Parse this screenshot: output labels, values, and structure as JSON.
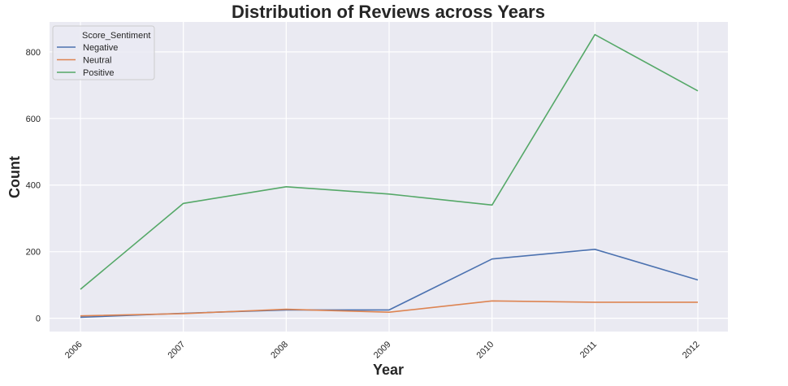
{
  "chart_data": {
    "type": "line",
    "title": "Distribution of Reviews across Years",
    "xlabel": "Year",
    "ylabel": "Count",
    "x": [
      "2006",
      "2007",
      "2008",
      "2009",
      "2010",
      "2011",
      "2012"
    ],
    "ylim": [
      -40,
      890
    ],
    "yticks": [
      0,
      200,
      400,
      600,
      800
    ],
    "grid": true,
    "legend": {
      "title": "Score_Sentiment",
      "position": "top-left"
    },
    "series": [
      {
        "name": "Negative",
        "color": "#4c72b0",
        "values": [
          3,
          15,
          25,
          25,
          178,
          207,
          115
        ]
      },
      {
        "name": "Neutral",
        "color": "#dd8452",
        "values": [
          7,
          14,
          27,
          18,
          52,
          48,
          48
        ]
      },
      {
        "name": "Positive",
        "color": "#55a868",
        "values": [
          87,
          345,
          395,
          373,
          340,
          852,
          683
        ]
      }
    ]
  }
}
